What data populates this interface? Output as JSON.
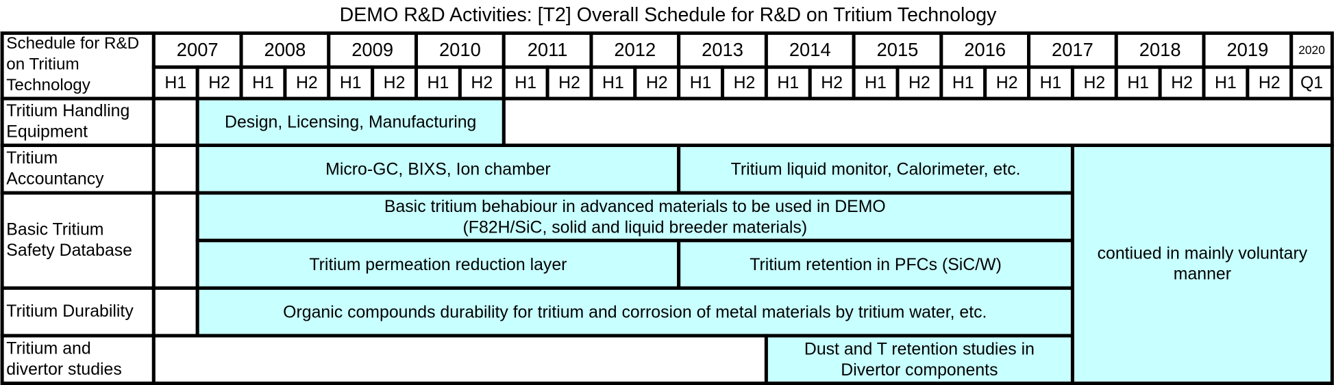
{
  "title": "DEMO R&D Activities: [T2] Overall Schedule for R&D on Tritium Technology",
  "header": {
    "corner": [
      "Schedule for R&D",
      "on Tritium",
      "Technology"
    ],
    "years": [
      "2007",
      "2008",
      "2009",
      "2010",
      "2011",
      "2012",
      "2013",
      "2014",
      "2015",
      "2016",
      "2017",
      "2018",
      "2019",
      "2020"
    ],
    "halves": [
      "H1",
      "H2",
      "H1",
      "H2",
      "H1",
      "H2",
      "H1",
      "H2",
      "H1",
      "H2",
      "H1",
      "H2",
      "H1",
      "H2",
      "H1",
      "H2",
      "H1",
      "H2",
      "H1",
      "H2",
      "H1",
      "H2",
      "H1",
      "H2",
      "H1",
      "H2",
      "Q1"
    ]
  },
  "rows": [
    {
      "label": [
        "Tritium Handling",
        "Equipment"
      ],
      "bars": [
        {
          "text": [
            "Design, Licensing, Manufacturing"
          ]
        }
      ]
    },
    {
      "label": [
        "Tritium",
        "Accountancy"
      ],
      "bars": [
        {
          "text": [
            "Micro-GC, BIXS, Ion chamber"
          ]
        },
        {
          "text": [
            "Tritium liquid monitor, Calorimeter, etc."
          ]
        }
      ]
    },
    {
      "label": [
        "Basic Tritium",
        "Safety Database"
      ],
      "bars": [
        {
          "text": [
            "Basic tritium behabiour in advanced materials to be used in DEMO",
            "(F82H/SiC, solid and liquid breeder materials)"
          ]
        },
        {
          "text": [
            "Tritium permeation reduction layer"
          ]
        },
        {
          "text": [
            "Tritium retention in PFCs (SiC/W)"
          ]
        }
      ]
    },
    {
      "label": [
        "Tritium Durability"
      ],
      "bars": [
        {
          "text": [
            "Organic compounds durability for tritium and corrosion of metal materials by tritium water, etc."
          ]
        }
      ]
    },
    {
      "label": [
        "Tritium and",
        "divertor studies"
      ],
      "bars": [
        {
          "text": [
            "Dust and T retention studies in",
            "Divertor components"
          ]
        }
      ]
    }
  ],
  "note": {
    "text": [
      "contiued in mainly voluntary",
      "manner"
    ]
  }
}
